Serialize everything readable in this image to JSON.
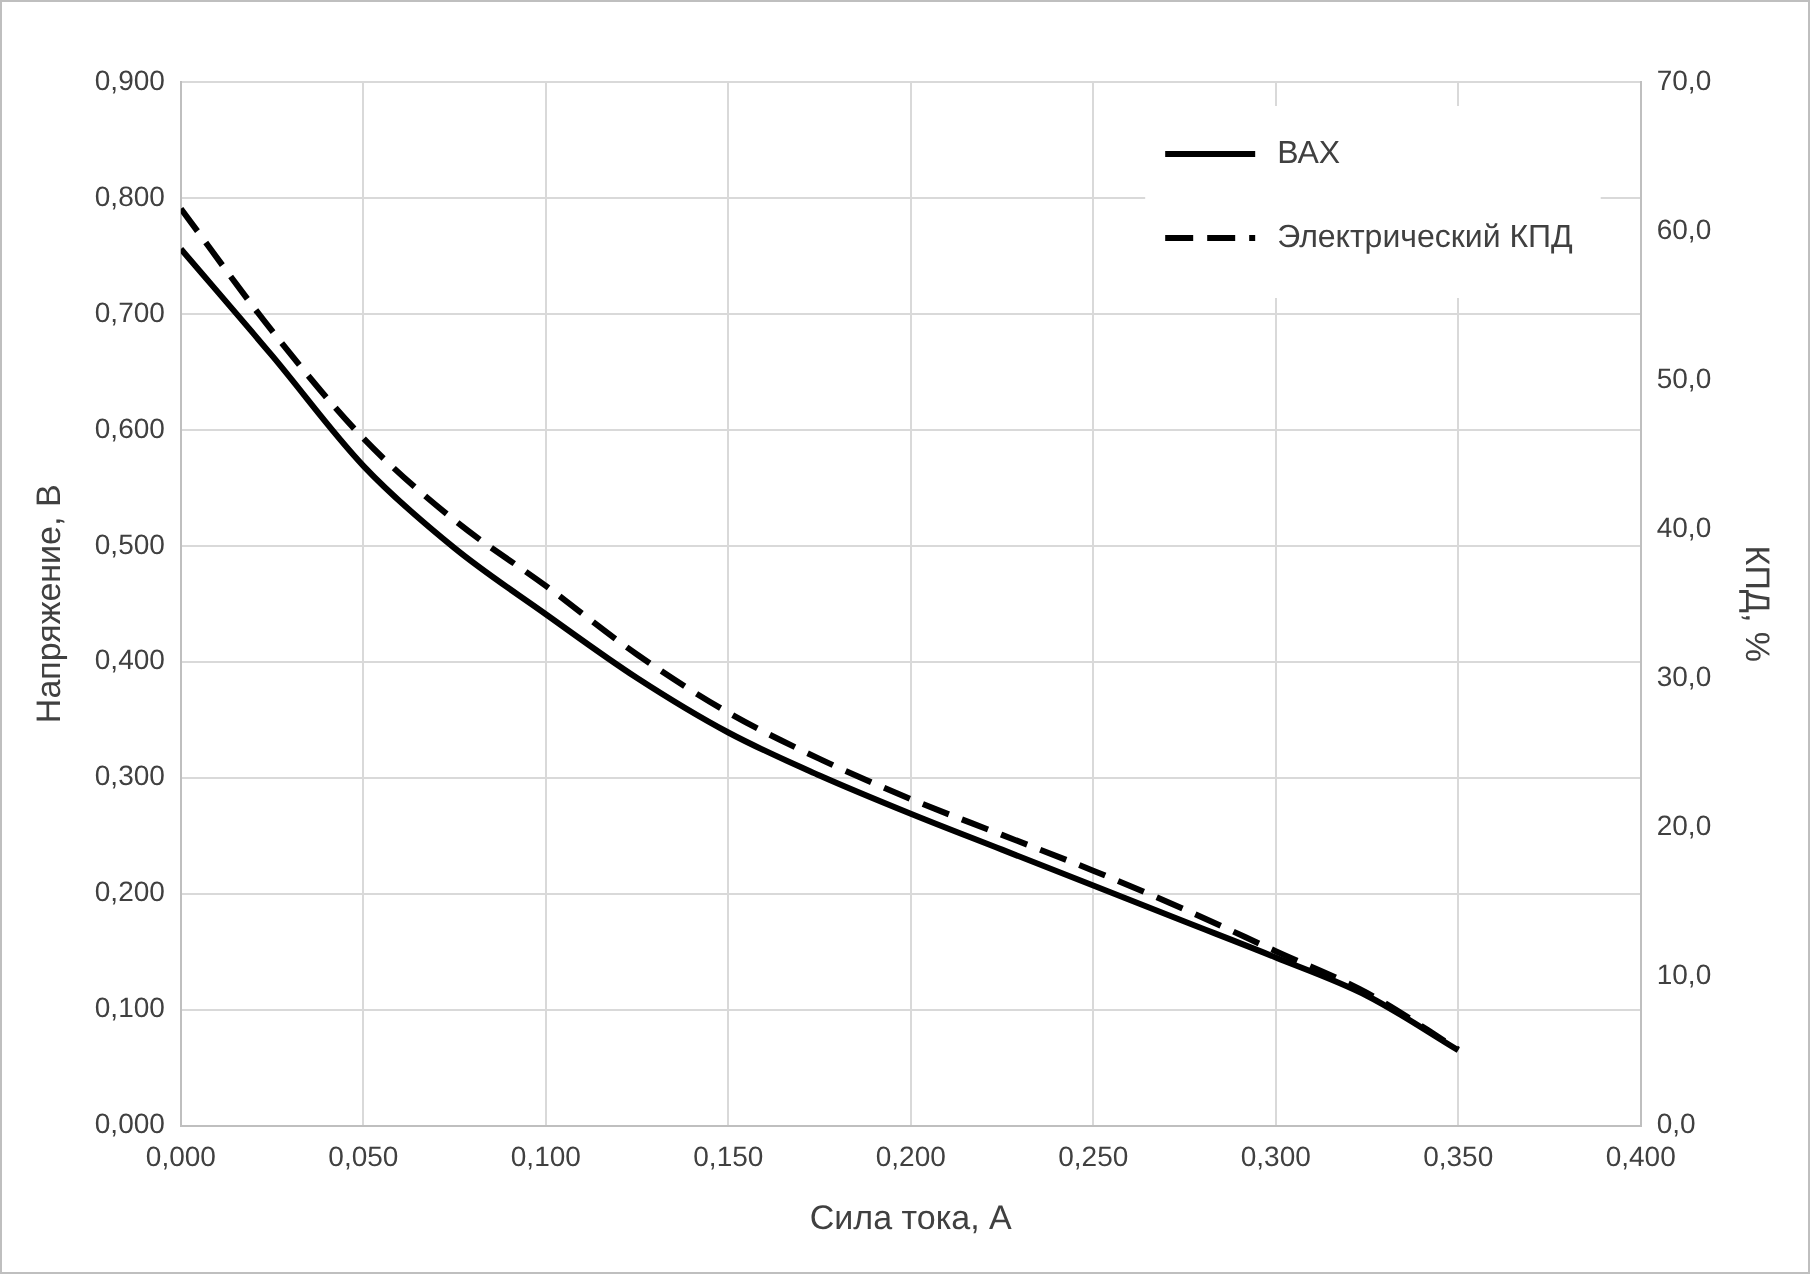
{
  "chart_data": {
    "type": "line",
    "xlabel": "Сила тока, А",
    "ylabel": "Напряжение, В",
    "y2label": "КПД, %",
    "x": [
      0,
      0.025,
      0.05,
      0.075,
      0.1,
      0.125,
      0.15,
      0.175,
      0.2,
      0.225,
      0.25,
      0.275,
      0.3,
      0.325,
      0.35
    ],
    "series": [
      {
        "name": "ВАХ",
        "color": "#000000",
        "line_style": "solid",
        "values": [
          0.756,
          0.664,
          0.569,
          0.498,
          0.441,
          0.386,
          0.339,
          0.302,
          0.269,
          0.238,
          0.207,
          0.176,
          0.145,
          0.112,
          0.065
        ]
      },
      {
        "name": "Электрический КПД",
        "color": "#000000",
        "line_style": "dashed",
        "axis": "y2",
        "values": [
          61.5,
          53.3,
          46.1,
          40.6,
          36.2,
          31.6,
          27.7,
          24.6,
          21.9,
          19.5,
          17.1,
          14.5,
          11.7,
          8.9,
          5.1
        ]
      }
    ],
    "xlim": [
      0,
      0.4
    ],
    "xticks": [
      {
        "value": 0,
        "label": "0,000"
      },
      {
        "value": 0.05,
        "label": "0,050"
      },
      {
        "value": 0.1,
        "label": "0,100"
      },
      {
        "value": 0.15,
        "label": "0,150"
      },
      {
        "value": 0.2,
        "label": "0,200"
      },
      {
        "value": 0.25,
        "label": "0,250"
      },
      {
        "value": 0.3,
        "label": "0,300"
      },
      {
        "value": 0.35,
        "label": "0,350"
      },
      {
        "value": 0.4,
        "label": "0,400"
      }
    ],
    "ylim": [
      0,
      0.9
    ],
    "yticks": [
      {
        "value": 0,
        "label": "0,000"
      },
      {
        "value": 0.1,
        "label": "0,100"
      },
      {
        "value": 0.2,
        "label": "0,200"
      },
      {
        "value": 0.3,
        "label": "0,300"
      },
      {
        "value": 0.4,
        "label": "0,400"
      },
      {
        "value": 0.5,
        "label": "0,500"
      },
      {
        "value": 0.6,
        "label": "0,600"
      },
      {
        "value": 0.7,
        "label": "0,700"
      },
      {
        "value": 0.8,
        "label": "0,800"
      },
      {
        "value": 0.9,
        "label": "0,900"
      }
    ],
    "y2lim": [
      0,
      70
    ],
    "y2ticks": [
      {
        "value": 0,
        "label": "0,0"
      },
      {
        "value": 10,
        "label": "10,0"
      },
      {
        "value": 20,
        "label": "20,0"
      },
      {
        "value": 30,
        "label": "30,0"
      },
      {
        "value": 40,
        "label": "40,0"
      },
      {
        "value": 50,
        "label": "50,0"
      },
      {
        "value": 60,
        "label": "60,0"
      },
      {
        "value": 70,
        "label": "70,0"
      }
    ],
    "grid": true,
    "legend": "top right",
    "marker": "none"
  }
}
